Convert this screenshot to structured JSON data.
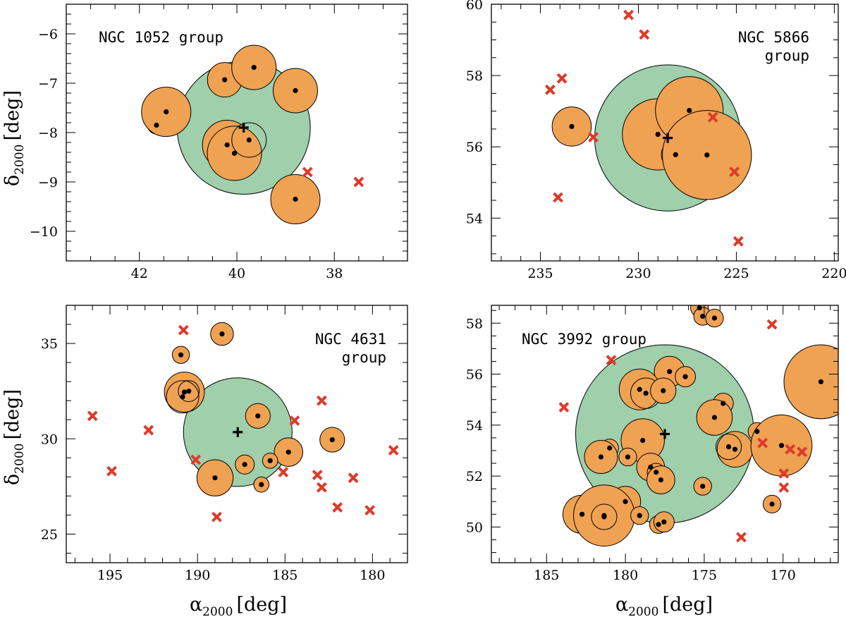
{
  "figure": {
    "x_label_symbol": "α",
    "x_label_sub": "2000",
    "x_label_unit": "[deg]",
    "y_label_symbol": "δ",
    "y_label_sub": "2000",
    "y_label_unit": "[deg]"
  },
  "colors": {
    "group_fill": "#9fcfab",
    "member_fill": "#f0a253",
    "nonmember_x": "#dd3b2c",
    "dot": "#000000"
  },
  "chart_data": [
    {
      "type": "scatter",
      "title_lines": [
        "NGC 1052 group"
      ],
      "title_align": "left",
      "xlim": [
        43.5,
        36.5
      ],
      "ylim": [
        -10.6,
        -5.4
      ],
      "xticks_major": [
        42,
        40,
        38
      ],
      "xticks_minor_step": 0.5,
      "yticks_major": [
        -6,
        -7,
        -8,
        -9,
        -10
      ],
      "yticks_minor_step": 0.2,
      "xtick_labels": [
        "42",
        "40",
        "38"
      ],
      "ytick_labels": [
        "−6",
        "−7",
        "−8",
        "−9",
        "−10"
      ],
      "group": {
        "ra": 39.86,
        "dec": -7.9,
        "radius_deg": 1.35
      },
      "members": [
        {
          "ra": 41.65,
          "dec": -7.85,
          "r": 0.18,
          "fill": true
        },
        {
          "ra": 41.45,
          "dec": -7.58,
          "r": 0.5,
          "fill": true
        },
        {
          "ra": 40.25,
          "dec": -6.93,
          "r": 0.35,
          "fill": true
        },
        {
          "ra": 39.65,
          "dec": -6.68,
          "r": 0.45,
          "fill": true
        },
        {
          "ra": 38.8,
          "dec": -7.15,
          "r": 0.45,
          "fill": true
        },
        {
          "ra": 40.2,
          "dec": -8.25,
          "r": 0.5,
          "fill": true
        },
        {
          "ra": 40.05,
          "dec": -8.42,
          "r": 0.55,
          "fill": true
        },
        {
          "ra": 39.75,
          "dec": -8.15,
          "r": 0.35,
          "fill": false
        },
        {
          "ra": 38.8,
          "dec": -9.35,
          "r": 0.5,
          "fill": true
        }
      ],
      "center": {
        "ra": 39.86,
        "dec": -7.9
      },
      "nonmembers": [
        {
          "ra": 38.55,
          "dec": -8.8
        },
        {
          "ra": 37.5,
          "dec": -9.0
        }
      ]
    },
    {
      "type": "scatter",
      "title_lines": [
        "NGC 5866",
        "group"
      ],
      "title_align": "right",
      "xlim": [
        237.5,
        219.8
      ],
      "ylim": [
        52.8,
        60.0
      ],
      "xticks_major": [
        235,
        230,
        225,
        220
      ],
      "xticks_minor_step": 1,
      "yticks_major": [
        54,
        56,
        58,
        60
      ],
      "yticks_minor_step": 0.5,
      "xtick_labels": [
        "235",
        "230",
        "225",
        "220"
      ],
      "ytick_labels": [
        "54",
        "56",
        "58",
        "60"
      ],
      "group": {
        "ra": 228.5,
        "dec": 56.25,
        "radius_deg": 2.05
      },
      "members": [
        {
          "ra": 233.4,
          "dec": 56.57,
          "r": 0.55,
          "fill": true
        },
        {
          "ra": 229.0,
          "dec": 56.35,
          "r": 1.0,
          "fill": true
        },
        {
          "ra": 227.4,
          "dec": 57.02,
          "r": 0.95,
          "fill": true
        },
        {
          "ra": 228.1,
          "dec": 55.78,
          "r": 0.4,
          "fill": true
        },
        {
          "ra": 226.5,
          "dec": 55.77,
          "r": 1.25,
          "fill": true
        }
      ],
      "center": {
        "ra": 228.5,
        "dec": 56.25
      },
      "nonmembers": [
        {
          "ra": 230.5,
          "dec": 59.7
        },
        {
          "ra": 229.7,
          "dec": 59.15
        },
        {
          "ra": 234.5,
          "dec": 57.6
        },
        {
          "ra": 233.9,
          "dec": 57.92
        },
        {
          "ra": 232.3,
          "dec": 56.27
        },
        {
          "ra": 226.2,
          "dec": 56.83
        },
        {
          "ra": 225.1,
          "dec": 55.3
        },
        {
          "ra": 234.1,
          "dec": 54.58
        },
        {
          "ra": 224.9,
          "dec": 53.35
        }
      ]
    },
    {
      "type": "scatter",
      "title_lines": [
        "NGC 4631",
        "group"
      ],
      "title_align": "right",
      "xlim": [
        197.5,
        178.0
      ],
      "ylim": [
        23.5,
        37.0
      ],
      "xticks_major": [
        195,
        190,
        185,
        180
      ],
      "xticks_minor_step": 1,
      "yticks_major": [
        25,
        30,
        35
      ],
      "yticks_minor_step": 1,
      "xtick_labels": [
        "195",
        "190",
        "185",
        "180"
      ],
      "ytick_labels": [
        "25",
        "30",
        "35"
      ],
      "group": {
        "ra": 187.7,
        "dec": 30.35,
        "radius_deg": 2.85
      },
      "members": [
        {
          "ra": 190.95,
          "dec": 34.4,
          "r": 0.45,
          "fill": true
        },
        {
          "ra": 188.6,
          "dec": 35.5,
          "r": 0.6,
          "fill": true
        },
        {
          "ra": 190.75,
          "dec": 32.45,
          "r": 1.05,
          "fill": true
        },
        {
          "ra": 190.85,
          "dec": 32.2,
          "r": 0.85,
          "fill": false
        },
        {
          "ra": 190.5,
          "dec": 32.5,
          "r": 0.55,
          "fill": false
        },
        {
          "ra": 186.55,
          "dec": 31.2,
          "r": 0.65,
          "fill": true
        },
        {
          "ra": 182.3,
          "dec": 29.95,
          "r": 0.65,
          "fill": true
        },
        {
          "ra": 184.8,
          "dec": 29.3,
          "r": 0.75,
          "fill": true
        },
        {
          "ra": 185.85,
          "dec": 28.85,
          "r": 0.4,
          "fill": true
        },
        {
          "ra": 187.3,
          "dec": 28.65,
          "r": 0.5,
          "fill": true
        },
        {
          "ra": 189.0,
          "dec": 27.95,
          "r": 0.95,
          "fill": true
        },
        {
          "ra": 186.35,
          "dec": 27.6,
          "r": 0.4,
          "fill": true
        }
      ],
      "center": {
        "ra": 187.7,
        "dec": 30.35
      },
      "nonmembers": [
        {
          "ra": 190.8,
          "dec": 35.7
        },
        {
          "ra": 196.0,
          "dec": 31.2
        },
        {
          "ra": 192.8,
          "dec": 30.45
        },
        {
          "ra": 190.1,
          "dec": 28.9
        },
        {
          "ra": 194.9,
          "dec": 28.3
        },
        {
          "ra": 188.9,
          "dec": 25.9
        },
        {
          "ra": 184.45,
          "dec": 30.95
        },
        {
          "ra": 182.9,
          "dec": 32.0
        },
        {
          "ra": 183.15,
          "dec": 28.1
        },
        {
          "ra": 182.9,
          "dec": 27.45
        },
        {
          "ra": 181.1,
          "dec": 27.95
        },
        {
          "ra": 182.0,
          "dec": 26.4
        },
        {
          "ra": 180.15,
          "dec": 26.25
        },
        {
          "ra": 178.8,
          "dec": 29.4
        },
        {
          "ra": 185.1,
          "dec": 28.25
        }
      ]
    },
    {
      "type": "scatter",
      "title_lines": [
        "NGC 3992 group"
      ],
      "title_align": "left",
      "xlim": [
        188.5,
        166.5
      ],
      "ylim": [
        48.6,
        58.7
      ],
      "xticks_major": [
        185,
        180,
        175,
        170
      ],
      "xticks_minor_step": 1,
      "yticks_major": [
        50,
        52,
        54,
        56,
        58
      ],
      "yticks_minor_step": 0.5,
      "xtick_labels": [
        "185",
        "180",
        "175",
        "170"
      ],
      "ytick_labels": [
        "50",
        "52",
        "54",
        "56",
        "58"
      ],
      "group": {
        "ra": 177.5,
        "dec": 53.65,
        "radius_deg": 3.5
      },
      "members": [
        {
          "ra": 175.3,
          "dec": 58.6,
          "r": 0.35,
          "fill": true
        },
        {
          "ra": 175.1,
          "dec": 58.27,
          "r": 0.35,
          "fill": true
        },
        {
          "ra": 174.35,
          "dec": 58.2,
          "r": 0.35,
          "fill": true
        },
        {
          "ra": 167.6,
          "dec": 55.7,
          "r": 1.45,
          "fill": true
        },
        {
          "ra": 177.2,
          "dec": 56.1,
          "r": 0.6,
          "fill": true
        },
        {
          "ra": 176.2,
          "dec": 55.9,
          "r": 0.4,
          "fill": true
        },
        {
          "ra": 179.1,
          "dec": 55.4,
          "r": 0.8,
          "fill": true
        },
        {
          "ra": 178.7,
          "dec": 55.25,
          "r": 0.6,
          "fill": false
        },
        {
          "ra": 177.6,
          "dec": 55.35,
          "r": 0.5,
          "fill": true
        },
        {
          "ra": 173.8,
          "dec": 54.85,
          "r": 0.4,
          "fill": true
        },
        {
          "ra": 174.35,
          "dec": 54.3,
          "r": 0.7,
          "fill": true
        },
        {
          "ra": 171.65,
          "dec": 53.75,
          "r": 0.35,
          "fill": true
        },
        {
          "ra": 178.9,
          "dec": 53.4,
          "r": 0.85,
          "fill": true
        },
        {
          "ra": 173.05,
          "dec": 53.05,
          "r": 0.7,
          "fill": true
        },
        {
          "ra": 173.45,
          "dec": 53.15,
          "r": 0.5,
          "fill": false
        },
        {
          "ra": 170.1,
          "dec": 53.2,
          "r": 1.2,
          "fill": true
        },
        {
          "ra": 181.0,
          "dec": 53.1,
          "r": 0.35,
          "fill": true
        },
        {
          "ra": 181.55,
          "dec": 52.75,
          "r": 0.65,
          "fill": true
        },
        {
          "ra": 179.85,
          "dec": 52.75,
          "r": 0.35,
          "fill": true
        },
        {
          "ra": 178.4,
          "dec": 52.35,
          "r": 0.55,
          "fill": true
        },
        {
          "ra": 178.05,
          "dec": 52.15,
          "r": 0.35,
          "fill": true
        },
        {
          "ra": 177.75,
          "dec": 51.85,
          "r": 0.55,
          "fill": true
        },
        {
          "ra": 175.1,
          "dec": 51.6,
          "r": 0.35,
          "fill": true
        },
        {
          "ra": 180.0,
          "dec": 51.0,
          "r": 0.6,
          "fill": true
        },
        {
          "ra": 170.7,
          "dec": 50.9,
          "r": 0.35,
          "fill": true
        },
        {
          "ra": 182.75,
          "dec": 50.5,
          "r": 0.75,
          "fill": true
        },
        {
          "ra": 181.35,
          "dec": 50.45,
          "r": 1.2,
          "fill": true
        },
        {
          "ra": 181.35,
          "dec": 50.4,
          "r": 0.5,
          "fill": false
        },
        {
          "ra": 179.1,
          "dec": 50.45,
          "r": 0.35,
          "fill": true
        },
        {
          "ra": 177.9,
          "dec": 50.1,
          "r": 0.35,
          "fill": true
        },
        {
          "ra": 177.55,
          "dec": 50.2,
          "r": 0.4,
          "fill": true
        }
      ],
      "center": {
        "ra": 177.5,
        "dec": 53.65
      },
      "nonmembers": [
        {
          "ra": 180.9,
          "dec": 56.55
        },
        {
          "ra": 183.9,
          "dec": 54.7
        },
        {
          "ra": 170.7,
          "dec": 57.95
        },
        {
          "ra": 171.3,
          "dec": 53.3
        },
        {
          "ra": 169.55,
          "dec": 53.05
        },
        {
          "ra": 168.8,
          "dec": 52.95
        },
        {
          "ra": 169.95,
          "dec": 52.1
        },
        {
          "ra": 169.95,
          "dec": 51.55
        },
        {
          "ra": 172.65,
          "dec": 49.6
        }
      ]
    }
  ]
}
